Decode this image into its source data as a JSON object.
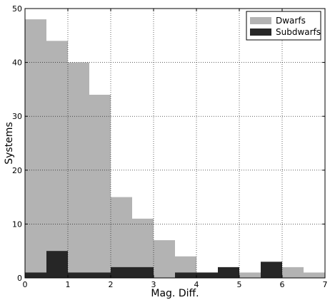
{
  "chart_data": {
    "type": "bar",
    "title": "",
    "xlabel": "Mag. Diff.",
    "ylabel": "Systems",
    "xlim": [
      0,
      7
    ],
    "ylim": [
      0,
      50
    ],
    "xticks": [
      "0",
      "1",
      "2",
      "3",
      "4",
      "5",
      "6",
      "7"
    ],
    "yticks": [
      "0",
      "10",
      "20",
      "30",
      "40",
      "50"
    ],
    "grid": true,
    "legend_position": "top-right",
    "bin_edges": [
      0,
      0.5,
      1,
      1.5,
      2,
      2.5,
      3,
      3.5,
      4,
      4.5,
      5,
      5.5,
      6,
      6.5,
      7
    ],
    "series": [
      {
        "name": "Dwarfs",
        "color": "#b3b3b3",
        "values": [
          48,
          44,
          40,
          34,
          15,
          11,
          7,
          4,
          1,
          1,
          1,
          2,
          2,
          1
        ]
      },
      {
        "name": "Subdwarfs",
        "color": "#262626",
        "values": [
          1,
          5,
          1,
          1,
          2,
          2,
          0,
          1,
          1,
          2,
          0,
          3,
          0,
          0
        ]
      }
    ]
  }
}
